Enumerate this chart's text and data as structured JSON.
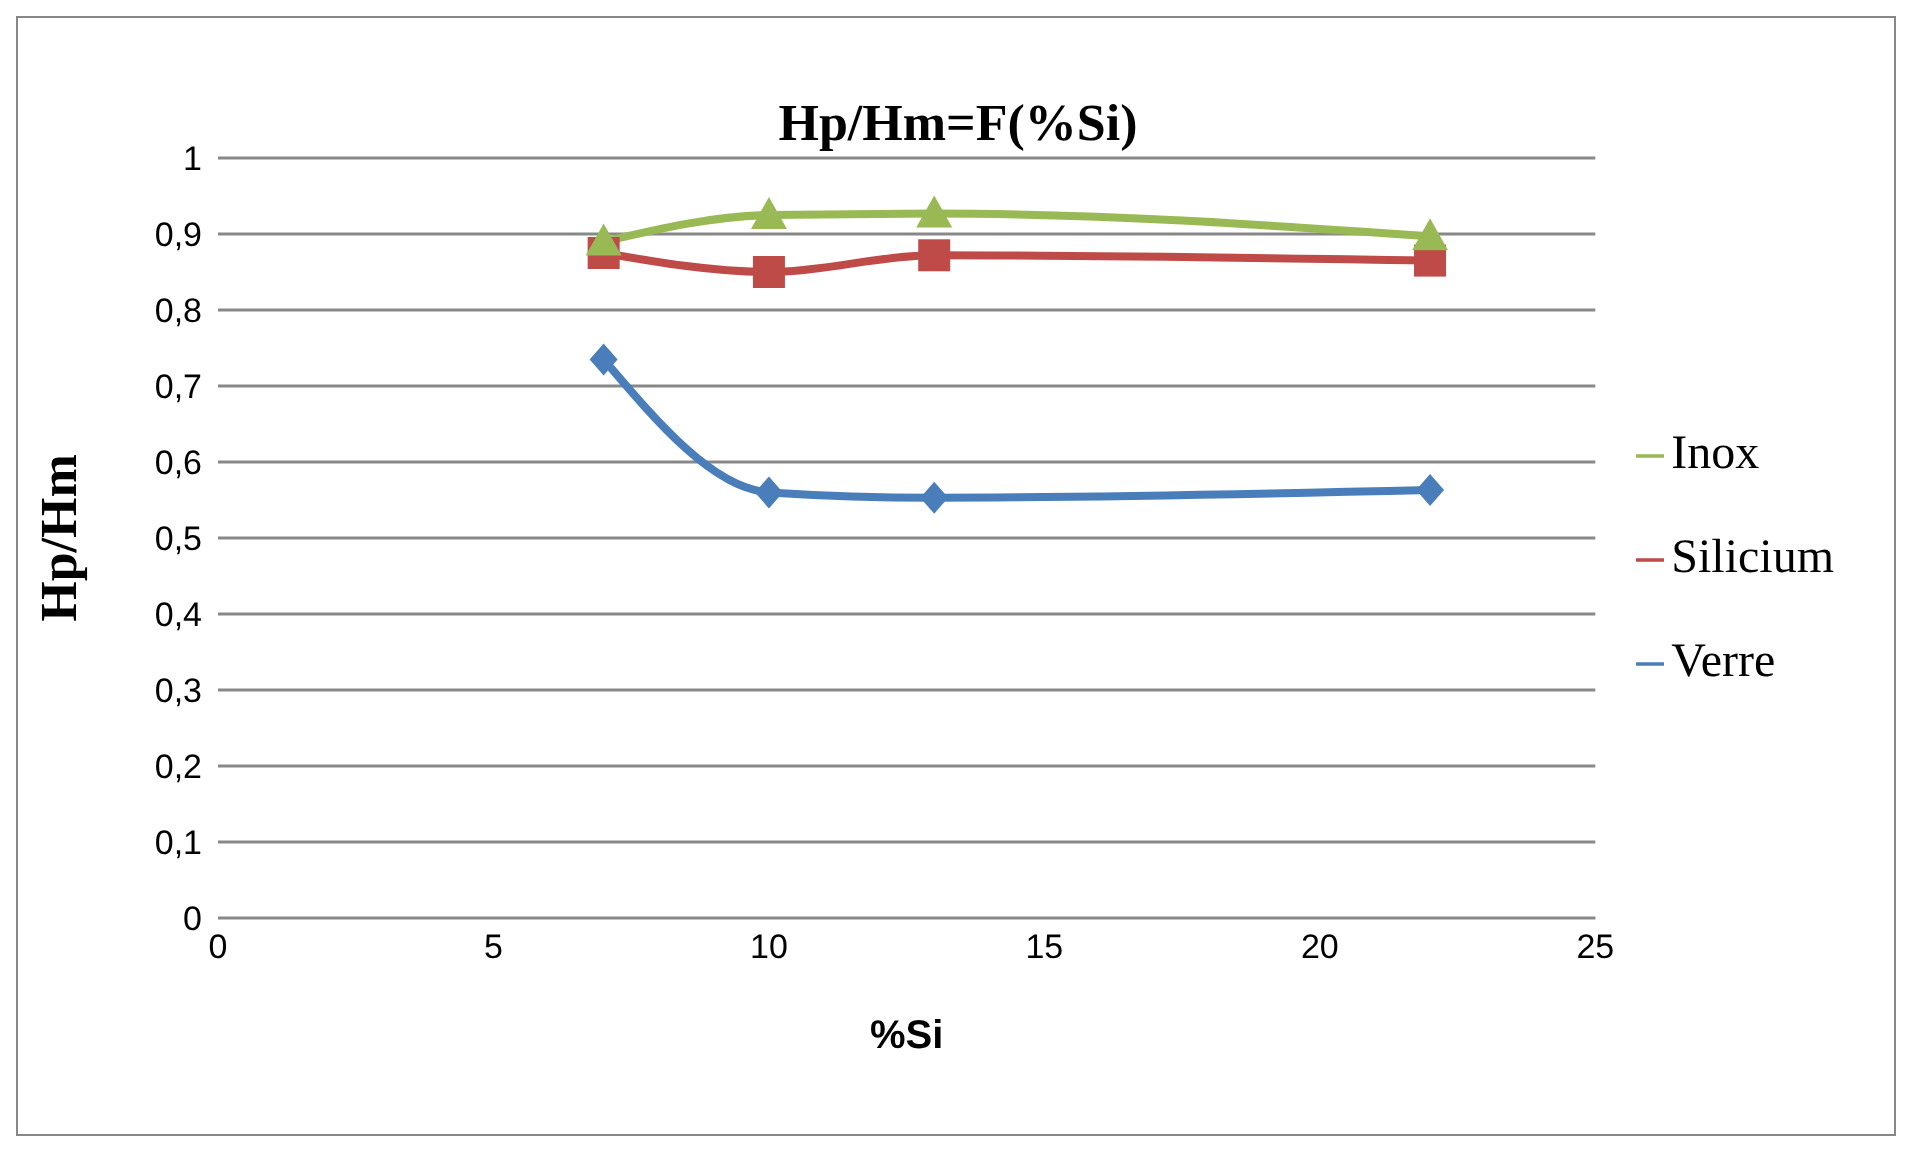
{
  "chart_data": {
    "type": "line",
    "title": "Hp/Hm=F(%Si)",
    "xlabel": "%Si",
    "ylabel": "Hp/Hm",
    "x": [
      7,
      10,
      13,
      22
    ],
    "series": [
      {
        "name": "Verre",
        "color": "#4a7ebb",
        "marker": "diamond",
        "values": [
          0.735,
          0.56,
          0.553,
          0.563
        ]
      },
      {
        "name": "Silicium",
        "color": "#be4b48",
        "marker": "square",
        "values": [
          0.875,
          0.85,
          0.872,
          0.865
        ]
      },
      {
        "name": "Inox",
        "color": "#98b954",
        "marker": "triangle",
        "values": [
          0.89,
          0.925,
          0.927,
          0.897
        ]
      }
    ],
    "xlim": [
      0,
      25
    ],
    "xticks": [
      0,
      5,
      10,
      15,
      20,
      25
    ],
    "ylim": [
      0,
      1
    ],
    "yticks": [
      0,
      {
        "value": 0.1,
        "label": "0,1"
      },
      {
        "value": 0.2,
        "label": "0,2"
      },
      {
        "value": 0.3,
        "label": "0,3"
      },
      {
        "value": 0.4,
        "label": "0,4"
      },
      {
        "value": 0.5,
        "label": "0,5"
      },
      {
        "value": 0.6,
        "label": "0,6"
      },
      {
        "value": 0.7,
        "label": "0,7"
      },
      {
        "value": 0.8,
        "label": "0,8"
      },
      {
        "value": 0.9,
        "label": "0,9"
      },
      1
    ],
    "grid": "y",
    "legend": "right"
  }
}
